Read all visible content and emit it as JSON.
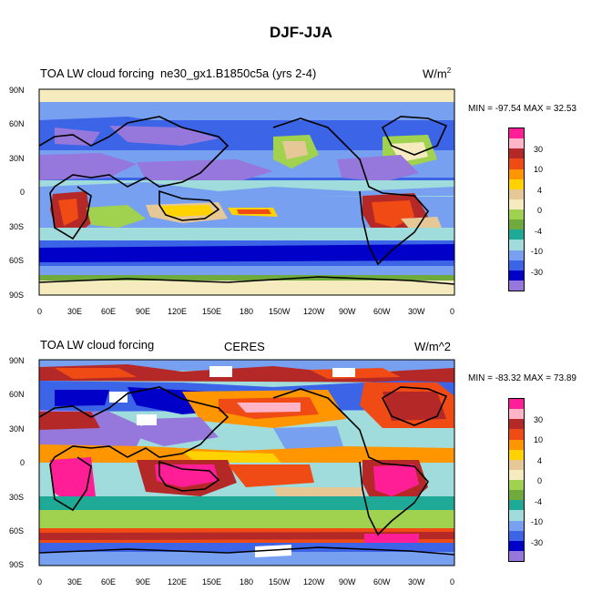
{
  "figure_title": "DJF-JJA",
  "panels": [
    {
      "left_title": "TOA LW cloud forcing",
      "center_title": "ne30_gx1.B1850c5a (yrs 2-4)",
      "units": "W/m",
      "units_sup": "2",
      "min_max": "MIN = -97.54 MAX =  32.53"
    },
    {
      "left_title": "TOA LW cloud forcing",
      "center_title": "CERES",
      "units": "W/m^2",
      "units_sup": "",
      "min_max": "MIN = -83.32 MAX =  73.89"
    }
  ],
  "lat_ticks": [
    "90N",
    "60N",
    "30N",
    "0",
    "30S",
    "60S",
    "90S"
  ],
  "lon_ticks": [
    "0",
    "30E",
    "60E",
    "90E",
    "120E",
    "150E",
    "180",
    "150W",
    "120W",
    "90W",
    "60W",
    "30W",
    "0"
  ],
  "colorbar": {
    "labels": [
      "30",
      "10",
      "4",
      "0",
      "-4",
      "-10",
      "-30"
    ],
    "colors": [
      "#ff1e96",
      "#ffb4c8",
      "#b42828",
      "#f04b14",
      "#ff9600",
      "#ffd200",
      "#e6c896",
      "#f5ebbe",
      "#a0d250",
      "#6eaa3c",
      "#1eaa96",
      "#a0dcdc",
      "#78a0f0",
      "#3c64e6",
      "#0000c8",
      "#9678dc"
    ]
  }
}
